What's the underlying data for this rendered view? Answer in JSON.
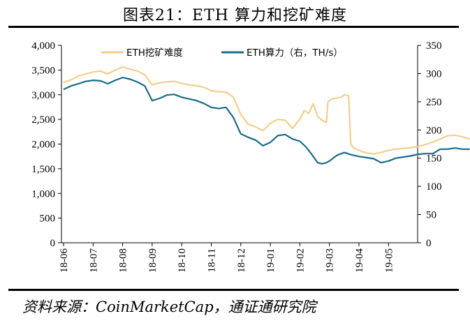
{
  "figure": {
    "title": "图表21：ETH 算力和挖矿难度",
    "source": "资料来源：CoinMarketCap，通证通研究院"
  },
  "chart_data": {
    "type": "line",
    "x_categories": [
      "18-06",
      "18-07",
      "18-08",
      "18-09",
      "18-10",
      "18-11",
      "18-12",
      "19-01",
      "19-02",
      "19-03",
      "19-04",
      "19-05"
    ],
    "ylim_left": [
      0,
      4000
    ],
    "yticks_left": [
      "0",
      "500",
      "1,000",
      "1,500",
      "2,000",
      "2,500",
      "3,000",
      "3,500",
      "4,000"
    ],
    "ylim_right": [
      0,
      350
    ],
    "yticks_right": [
      "0",
      "50",
      "100",
      "150",
      "200",
      "250",
      "300",
      "350"
    ],
    "legend_position": "top-center",
    "series": [
      {
        "name": "ETH挖矿难度",
        "axis": "left",
        "color": "#f2cf8d",
        "points": [
          [
            0,
            3250
          ],
          [
            0.25,
            3300
          ],
          [
            0.5,
            3380
          ],
          [
            0.75,
            3420
          ],
          [
            1.0,
            3460
          ],
          [
            1.25,
            3480
          ],
          [
            1.5,
            3420
          ],
          [
            1.75,
            3500
          ],
          [
            2.0,
            3560
          ],
          [
            2.25,
            3520
          ],
          [
            2.5,
            3480
          ],
          [
            2.75,
            3400
          ],
          [
            3.0,
            3200
          ],
          [
            3.25,
            3240
          ],
          [
            3.5,
            3260
          ],
          [
            3.75,
            3270
          ],
          [
            4.0,
            3230
          ],
          [
            4.25,
            3200
          ],
          [
            4.5,
            3180
          ],
          [
            4.75,
            3150
          ],
          [
            5.0,
            3080
          ],
          [
            5.25,
            3060
          ],
          [
            5.5,
            3050
          ],
          [
            5.75,
            2950
          ],
          [
            6.0,
            2600
          ],
          [
            6.25,
            2400
          ],
          [
            6.5,
            2350
          ],
          [
            6.75,
            2270
          ],
          [
            7.0,
            2420
          ],
          [
            7.25,
            2500
          ],
          [
            7.5,
            2480
          ],
          [
            7.75,
            2320
          ],
          [
            8.0,
            2500
          ],
          [
            8.15,
            2680
          ],
          [
            8.3,
            2620
          ],
          [
            8.45,
            2820
          ],
          [
            8.6,
            2560
          ],
          [
            8.75,
            2480
          ],
          [
            8.9,
            2440
          ],
          [
            8.95,
            2860
          ],
          [
            9.1,
            2920
          ],
          [
            9.25,
            2930
          ],
          [
            9.4,
            2950
          ],
          [
            9.5,
            3000
          ],
          [
            9.65,
            2980
          ],
          [
            9.72,
            2000
          ],
          [
            9.8,
            1930
          ],
          [
            10.0,
            1870
          ],
          [
            10.25,
            1820
          ],
          [
            10.5,
            1800
          ],
          [
            10.75,
            1830
          ],
          [
            11.0,
            1870
          ],
          [
            11.25,
            1900
          ],
          [
            11.5,
            1910
          ],
          [
            11.75,
            1930
          ],
          [
            12.0,
            1950
          ],
          [
            12.25,
            1990
          ],
          [
            12.5,
            2040
          ],
          [
            12.75,
            2100
          ],
          [
            13.0,
            2170
          ],
          [
            13.25,
            2180
          ],
          [
            13.5,
            2150
          ],
          [
            13.75,
            2100
          ]
        ]
      },
      {
        "name": "ETH算力（右，TH/s）",
        "axis": "right",
        "color": "#1a6a8a",
        "points": [
          [
            0,
            272
          ],
          [
            0.25,
            278
          ],
          [
            0.5,
            282
          ],
          [
            0.75,
            286
          ],
          [
            1.0,
            288
          ],
          [
            1.25,
            287
          ],
          [
            1.5,
            282
          ],
          [
            1.75,
            288
          ],
          [
            2.0,
            293
          ],
          [
            2.25,
            290
          ],
          [
            2.5,
            285
          ],
          [
            2.75,
            278
          ],
          [
            3.0,
            252
          ],
          [
            3.25,
            256
          ],
          [
            3.5,
            262
          ],
          [
            3.75,
            263
          ],
          [
            4.0,
            258
          ],
          [
            4.25,
            255
          ],
          [
            4.5,
            252
          ],
          [
            4.75,
            247
          ],
          [
            5.0,
            240
          ],
          [
            5.25,
            238
          ],
          [
            5.5,
            240
          ],
          [
            5.75,
            222
          ],
          [
            6.0,
            193
          ],
          [
            6.25,
            187
          ],
          [
            6.5,
            182
          ],
          [
            6.75,
            172
          ],
          [
            7.0,
            178
          ],
          [
            7.25,
            190
          ],
          [
            7.5,
            192
          ],
          [
            7.75,
            184
          ],
          [
            8.0,
            180
          ],
          [
            8.2,
            170
          ],
          [
            8.4,
            157
          ],
          [
            8.6,
            142
          ],
          [
            8.75,
            140
          ],
          [
            8.9,
            142
          ],
          [
            9.0,
            145
          ],
          [
            9.25,
            155
          ],
          [
            9.5,
            160
          ],
          [
            9.75,
            156
          ],
          [
            10.0,
            153
          ],
          [
            10.25,
            151
          ],
          [
            10.5,
            149
          ],
          [
            10.75,
            142
          ],
          [
            11.0,
            145
          ],
          [
            11.25,
            150
          ],
          [
            11.5,
            152
          ],
          [
            11.75,
            154
          ],
          [
            12.0,
            157
          ],
          [
            12.25,
            158
          ],
          [
            12.5,
            158
          ],
          [
            12.75,
            166
          ],
          [
            13.0,
            166
          ],
          [
            13.25,
            168
          ],
          [
            13.5,
            166
          ],
          [
            13.75,
            166
          ]
        ]
      }
    ]
  }
}
